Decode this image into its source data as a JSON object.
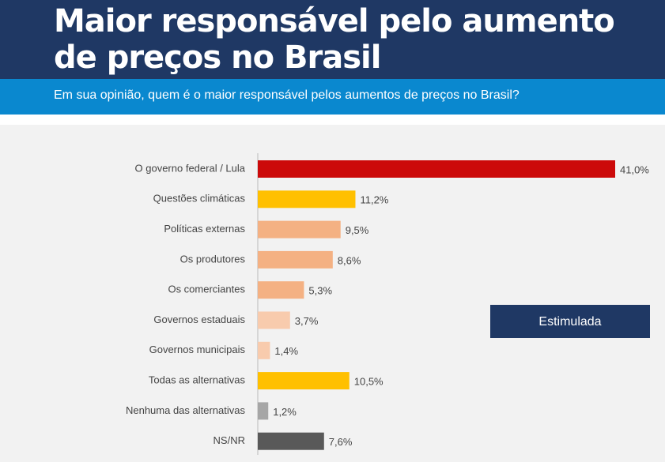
{
  "header": {
    "title": "Maior responsável pelo aumento de preços no Brasil",
    "subtitle": "Em sua opinião, quem é o maior responsável pelos aumentos de preços no Brasil?"
  },
  "chart_data": {
    "type": "bar",
    "orientation": "horizontal",
    "categories": [
      "O governo federal / Lula",
      "Questões climáticas",
      "Políticas externas",
      "Os produtores",
      "Os comerciantes",
      "Governos estaduais",
      "Governos municipais",
      "Todas as alternativas",
      "Nenhuma das alternativas",
      "NS/NR"
    ],
    "values": [
      41.0,
      11.2,
      9.5,
      8.6,
      5.3,
      3.7,
      1.4,
      10.5,
      1.2,
      7.6
    ],
    "value_labels": [
      "41,0%",
      "11,2%",
      "9,5%",
      "8,6%",
      "5,3%",
      "3,7%",
      "1,4%",
      "10,5%",
      "1,2%",
      "7,6%"
    ],
    "colors": [
      "#cc0a0a",
      "#ffc000",
      "#f4b183",
      "#f4b183",
      "#f4b183",
      "#f8cbad",
      "#f8cbad",
      "#ffc000",
      "#a6a6a6",
      "#595959"
    ],
    "badge": "Estimulada"
  }
}
